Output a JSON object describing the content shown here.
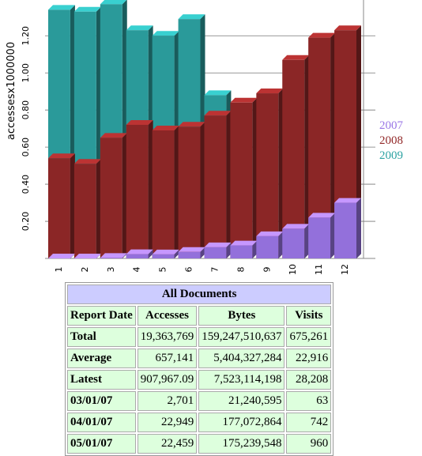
{
  "chart_data": {
    "type": "bar3d",
    "y_label": "accessesx1000000",
    "categories": [
      "1",
      "2",
      "3",
      "4",
      "5",
      "6",
      "7",
      "8",
      "9",
      "10",
      "11",
      "12"
    ],
    "series": [
      {
        "name": "2009",
        "color": "#2a9a9a",
        "values": [
          1.34,
          1.33,
          1.37,
          1.23,
          1.2,
          1.29,
          0.88,
          0,
          0,
          0,
          0,
          0
        ]
      },
      {
        "name": "2008",
        "color": "#8b2626",
        "values": [
          0.54,
          0.51,
          0.65,
          0.72,
          0.69,
          0.71,
          0.77,
          0.84,
          0.89,
          1.07,
          1.19,
          1.23
        ]
      },
      {
        "name": "2007",
        "color": "#9370db",
        "values": [
          0,
          0,
          0.0027,
          0.023,
          0.022,
          0.035,
          0.06,
          0.07,
          0.12,
          0.16,
          0.22,
          0.3
        ]
      }
    ],
    "ylim": [
      0,
      1.38
    ],
    "yticks": [
      {
        "value": 0.2,
        "label": "0.20"
      },
      {
        "value": 0.4,
        "label": "0.40"
      },
      {
        "value": 0.6,
        "label": "0.60"
      },
      {
        "value": 0.8,
        "label": "0.80"
      },
      {
        "value": 1,
        "label": "1.00"
      },
      {
        "value": 1.2,
        "label": "1.20"
      }
    ],
    "grid": true,
    "legend": "right"
  },
  "table": {
    "title": "All Documents",
    "header": [
      "Report Date",
      "Accesses",
      "Bytes",
      "Visits"
    ],
    "rows": [
      [
        "Total",
        "19,363,769",
        "159,247,510,637",
        "675,261"
      ],
      [
        "Average",
        "657,141",
        "5,404,327,284",
        "22,916"
      ],
      [
        "Latest",
        "907,967.09",
        "7,523,114,198",
        "28,208"
      ],
      [
        "03/01/07",
        "2,701",
        "21,240,595",
        "63"
      ],
      [
        "04/01/07",
        "22,949",
        "177,072,864",
        "742"
      ],
      [
        "05/01/07",
        "22,459",
        "175,239,548",
        "960"
      ]
    ]
  }
}
